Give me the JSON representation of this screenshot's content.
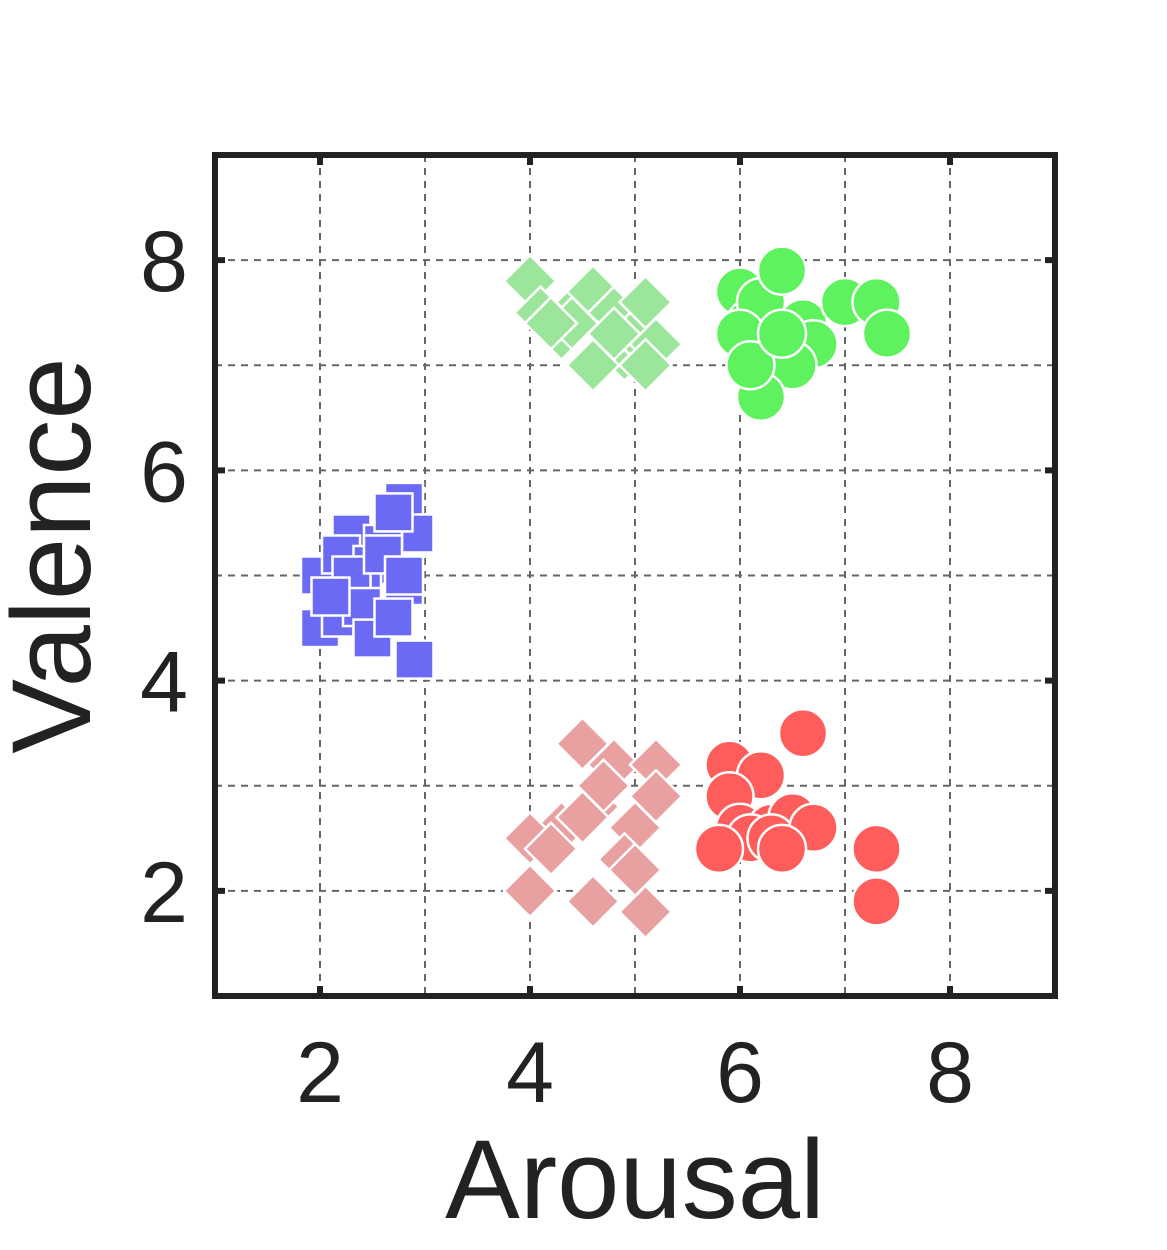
{
  "chart_data": {
    "type": "scatter",
    "title": "",
    "xlabel": "Arousal",
    "ylabel": "Valence",
    "xlim": [
      1,
      9
    ],
    "ylim": [
      1,
      9
    ],
    "xticks": [
      2,
      4,
      6,
      8
    ],
    "yticks": [
      2,
      4,
      6,
      8
    ],
    "x_ticklabels": [
      "2",
      "4",
      "6",
      "8"
    ],
    "y_ticklabels": [
      "2",
      "4",
      "6",
      "8"
    ],
    "grid": true,
    "grid_step": 1,
    "legend": "none",
    "series": [
      {
        "marker": "square",
        "color": "#6a6af5",
        "x": [
          2.0,
          2.3,
          2.2,
          2.5,
          2.8,
          2.9,
          2.4,
          2.3,
          2.6,
          2.7,
          2.0,
          2.2,
          2.5,
          2.8,
          2.9,
          2.3,
          2.6,
          2.4,
          2.8,
          2.1,
          2.5,
          2.7
        ],
        "y": [
          5.0,
          5.4,
          5.2,
          5.1,
          5.7,
          5.4,
          4.9,
          4.8,
          5.3,
          5.6,
          4.5,
          4.6,
          4.5,
          4.9,
          4.2,
          5.0,
          5.2,
          4.7,
          5.0,
          4.8,
          4.4,
          4.6
        ]
      },
      {
        "marker": "diamond",
        "color": "#9be69b",
        "x": [
          4.0,
          4.1,
          4.3,
          4.5,
          4.6,
          4.8,
          4.9,
          5.0,
          5.1,
          5.2,
          4.4,
          4.7,
          5.1,
          4.2,
          4.8,
          4.6
        ],
        "y": [
          7.8,
          7.5,
          7.3,
          7.6,
          7.7,
          7.5,
          7.1,
          7.3,
          7.6,
          7.2,
          7.4,
          7.1,
          7.0,
          7.4,
          7.3,
          7.0
        ]
      },
      {
        "marker": "circle",
        "color": "#5ef25e",
        "x": [
          6.0,
          6.1,
          6.2,
          6.4,
          6.5,
          6.6,
          6.7,
          6.0,
          6.3,
          6.5,
          6.2,
          6.1,
          7.0,
          7.3,
          7.4,
          6.4
        ],
        "y": [
          7.7,
          7.4,
          7.6,
          7.9,
          7.2,
          7.4,
          7.2,
          7.3,
          7.0,
          7.0,
          6.7,
          7.0,
          7.6,
          7.6,
          7.3,
          7.3
        ]
      },
      {
        "marker": "diamond",
        "color": "#e8a0a0",
        "x": [
          4.5,
          4.8,
          4.6,
          4.3,
          4.0,
          5.2,
          5.0,
          5.2,
          4.6,
          4.0,
          5.1,
          4.9,
          5.0,
          4.2,
          4.5,
          4.7
        ],
        "y": [
          3.4,
          3.2,
          2.8,
          2.6,
          2.5,
          3.2,
          2.6,
          2.9,
          1.9,
          2.0,
          1.8,
          2.3,
          2.2,
          2.4,
          2.7,
          3.0
        ]
      },
      {
        "marker": "circle",
        "color": "#ff5c5c",
        "x": [
          5.9,
          6.2,
          6.6,
          5.9,
          6.0,
          6.3,
          6.5,
          6.1,
          6.3,
          6.7,
          7.3,
          7.3,
          5.8,
          6.4
        ],
        "y": [
          3.2,
          3.1,
          3.5,
          2.9,
          2.6,
          2.6,
          2.7,
          2.5,
          2.5,
          2.6,
          2.4,
          1.9,
          2.4,
          2.4
        ]
      }
    ]
  }
}
